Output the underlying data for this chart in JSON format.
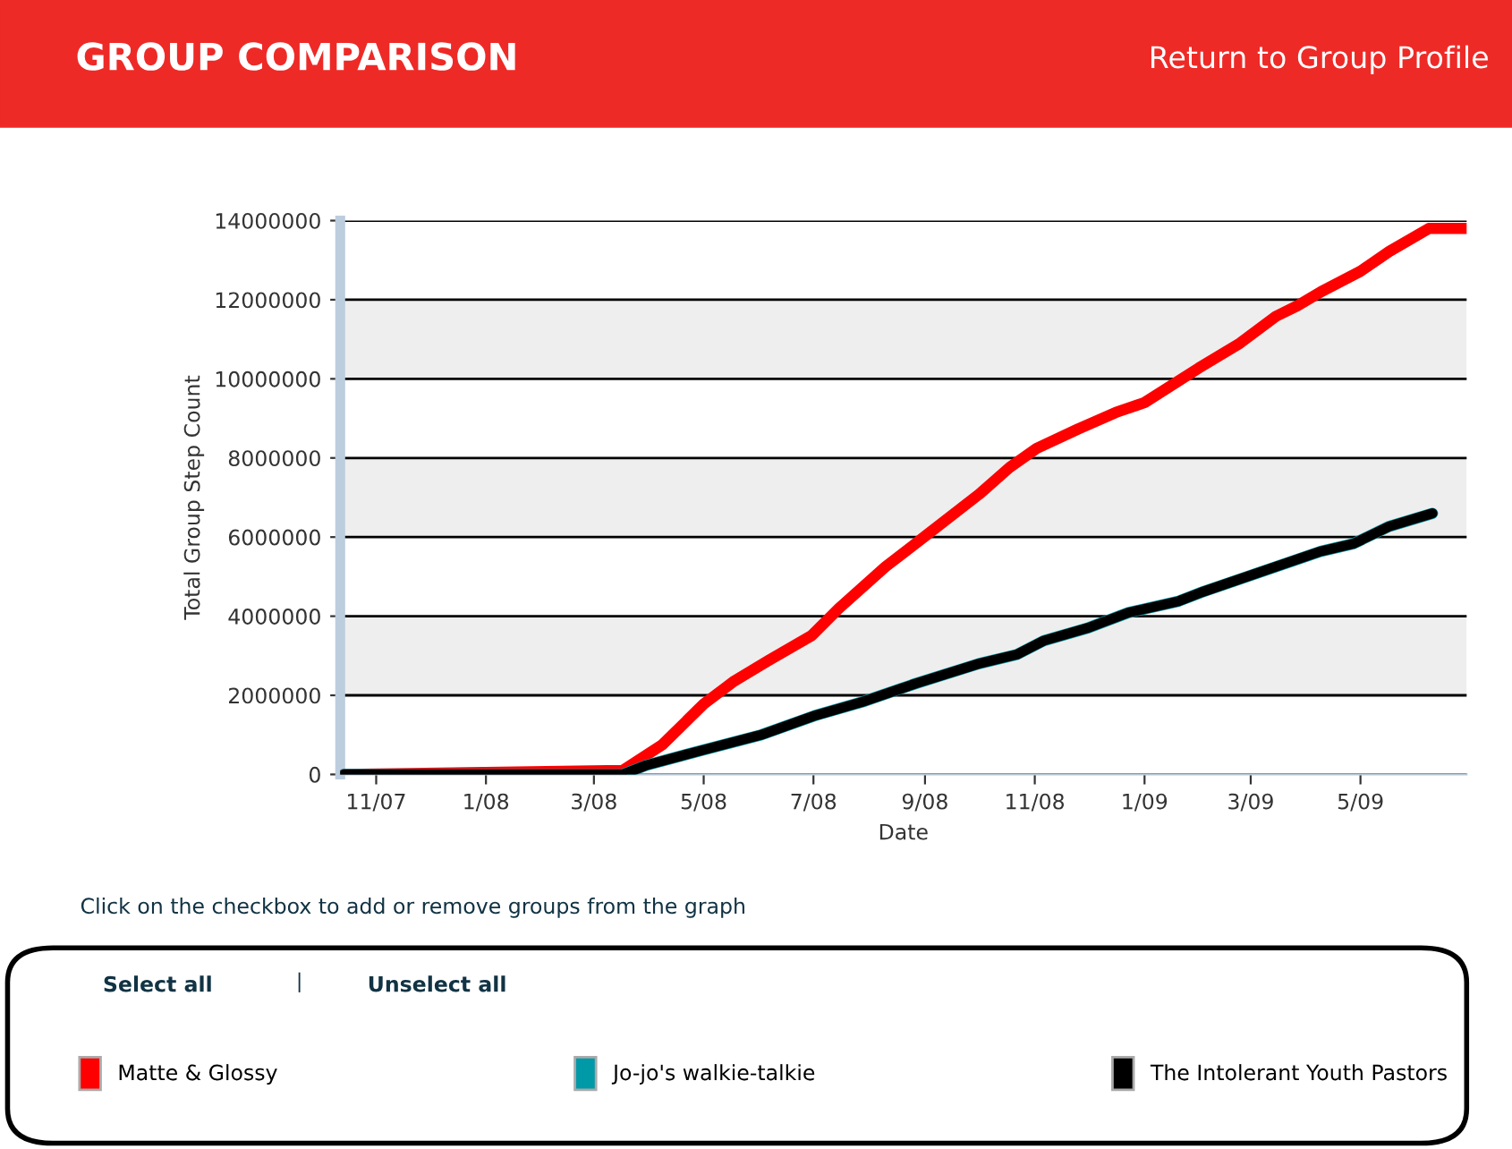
{
  "chart_data": {
    "type": "line",
    "title": "GROUP COMPARISON",
    "xlabel": "Date",
    "ylabel": "Total Group Step Count",
    "annotations": [
      "Return to Group Profile",
      "Click on the checkbox to add or remove groups from the graph",
      "Select all",
      "|",
      "Unselect all"
    ],
    "series": [
      {
        "name": "Matte & Glossy",
        "color": "#ff0000",
        "x": [
          "2007-10-14",
          "2008-03-17",
          "2008-04-08",
          "2008-05-01",
          "2008-05-18",
          "2008-06-06",
          "2008-06-30",
          "2008-07-15",
          "2008-08-10",
          "2008-09-01",
          "2008-10-01",
          "2008-10-18",
          "2008-11-02",
          "2008-11-25",
          "2008-12-16",
          "2009-01-01",
          "2009-01-31",
          "2009-02-23",
          "2009-03-15",
          "2009-03-27",
          "2009-04-09",
          "2009-05-01",
          "2009-05-17",
          "2009-06-08",
          "2009-06-29"
        ],
        "values": [
          0,
          100000,
          750000,
          1780000,
          2360000,
          2880000,
          3510000,
          4190000,
          5250000,
          6020000,
          7080000,
          7760000,
          8240000,
          8730000,
          9150000,
          9400000,
          10270000,
          10900000,
          11580000,
          11850000,
          12200000,
          12720000,
          13220000,
          13800000,
          13800000
        ]
      },
      {
        "name": "Jo-jo's walkie-talkie",
        "color": "#0099a8",
        "x": [
          "2007-10-14",
          "2008-03-17",
          "2008-03-30",
          "2008-05-01",
          "2008-06-02",
          "2008-07-02",
          "2008-07-28",
          "2008-08-27",
          "2008-10-01",
          "2008-10-22",
          "2008-11-06",
          "2008-12-01",
          "2008-12-23",
          "2009-01-20",
          "2009-02-02",
          "2009-03-15",
          "2009-04-09",
          "2009-04-27",
          "2009-05-17",
          "2009-06-10"
        ],
        "values": [
          0,
          0,
          230000,
          620000,
          1000000,
          1490000,
          1830000,
          2300000,
          2800000,
          3030000,
          3380000,
          3710000,
          4090000,
          4380000,
          4610000,
          5250000,
          5640000,
          5830000,
          6270000,
          6600000
        ]
      },
      {
        "name": "The Intolerant Youth Pastors",
        "color": "#000000",
        "x": [
          "2007-10-14",
          "2008-03-17",
          "2008-03-30",
          "2008-05-01",
          "2008-06-02",
          "2008-07-02",
          "2008-07-28",
          "2008-08-27",
          "2008-10-01",
          "2008-10-22",
          "2008-11-06",
          "2008-12-01",
          "2008-12-23",
          "2009-01-20",
          "2009-02-02",
          "2009-03-15",
          "2009-04-09",
          "2009-04-27",
          "2009-05-17",
          "2009-06-10"
        ],
        "values": [
          0,
          0,
          230000,
          620000,
          1000000,
          1490000,
          1830000,
          2300000,
          2800000,
          3030000,
          3380000,
          3710000,
          4090000,
          4380000,
          4610000,
          5250000,
          5640000,
          5830000,
          6270000,
          6600000
        ]
      }
    ],
    "xlim": [
      "2007-10-12",
      "2009-06-29"
    ],
    "xticks": [
      {
        "value": "2007-11-01",
        "label": "11/07"
      },
      {
        "value": "2008-01-01",
        "label": "1/08"
      },
      {
        "value": "2008-03-01",
        "label": "3/08"
      },
      {
        "value": "2008-05-01",
        "label": "5/08"
      },
      {
        "value": "2008-07-01",
        "label": "7/08"
      },
      {
        "value": "2008-09-01",
        "label": "9/08"
      },
      {
        "value": "2008-11-01",
        "label": "11/08"
      },
      {
        "value": "2009-01-01",
        "label": "1/09"
      },
      {
        "value": "2009-03-01",
        "label": "3/09"
      },
      {
        "value": "2009-05-01",
        "label": "5/09"
      }
    ],
    "ylim": [
      0,
      14000000
    ],
    "yticks": [
      0,
      2000000,
      4000000,
      6000000,
      8000000,
      10000000,
      12000000,
      14000000
    ],
    "grid": "y",
    "legend": "bottom",
    "marker": "none",
    "line_style": "solid"
  }
}
